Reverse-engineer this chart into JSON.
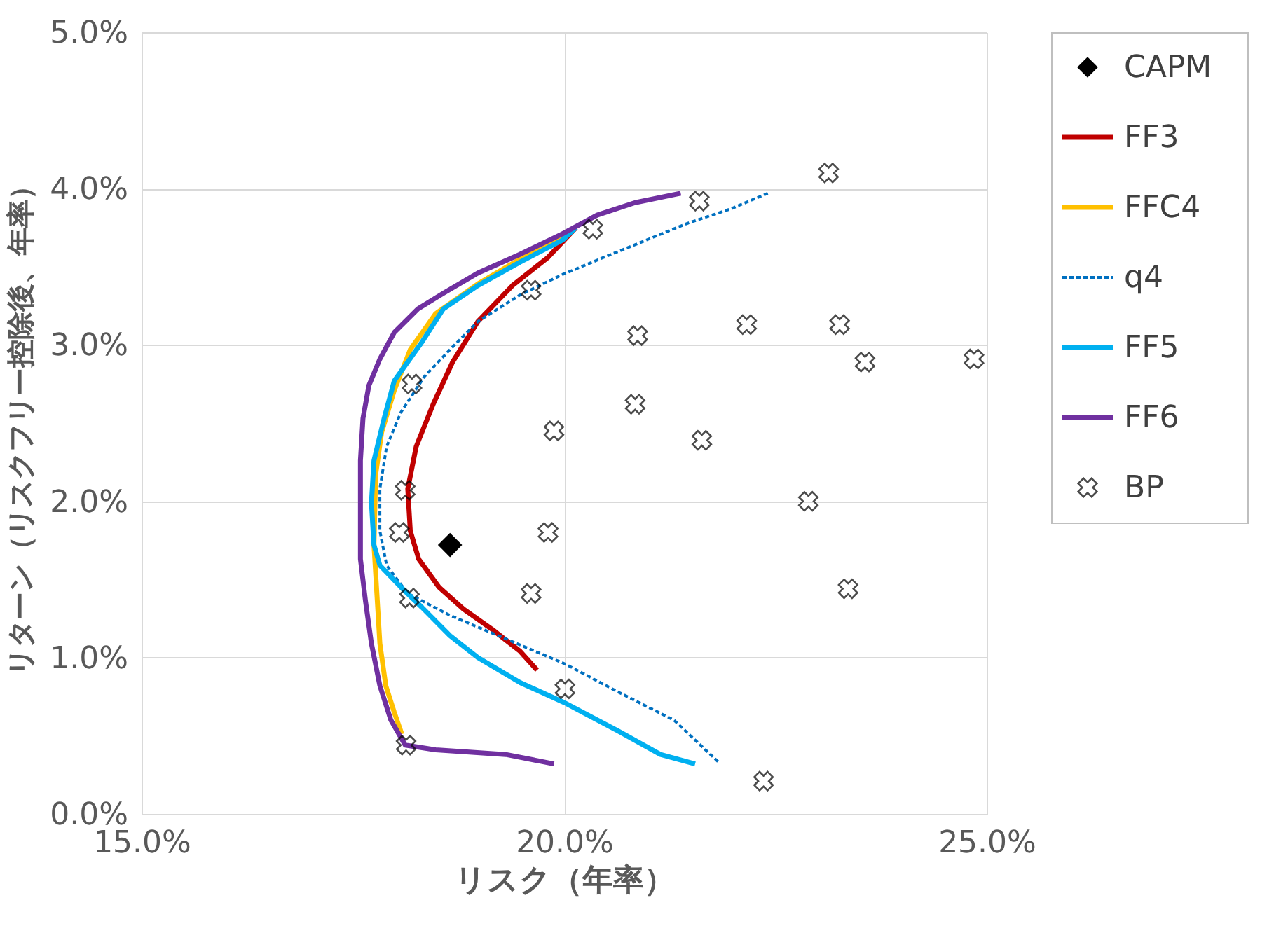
{
  "chart_data": {
    "type": "line",
    "xlabel": "リスク（年率）",
    "ylabel": "リターン（リスクフリー控除後、年率）",
    "xlim": [
      15,
      25
    ],
    "ylim": [
      0,
      5
    ],
    "xticks": [
      {
        "value": 15,
        "label": "15.0%"
      },
      {
        "value": 20,
        "label": "20.0%"
      },
      {
        "value": 25,
        "label": "25.0%"
      }
    ],
    "yticks": [
      {
        "value": 0,
        "label": "0.0%"
      },
      {
        "value": 1,
        "label": "1.0%"
      },
      {
        "value": 2,
        "label": "2.0%"
      },
      {
        "value": 3,
        "label": "3.0%"
      },
      {
        "value": 4,
        "label": "4.0%"
      },
      {
        "value": 5,
        "label": "5.0%"
      }
    ],
    "grid": true,
    "legend": "right",
    "series": [
      {
        "name": "CAPM",
        "type": "scatter",
        "marker": "diamond",
        "color": "#000000",
        "x": [
          18.65
        ],
        "values": [
          1.72
        ]
      },
      {
        "name": "FF3",
        "line_style": "solid",
        "color": "#c00000",
        "x": [
          20.14,
          19.81,
          19.39,
          18.98,
          18.68,
          18.45,
          18.25,
          18.15,
          18.18,
          18.28,
          18.52,
          18.81,
          19.15,
          19.48,
          19.68
        ],
        "values": [
          3.75,
          3.56,
          3.38,
          3.15,
          2.89,
          2.62,
          2.35,
          2.08,
          1.81,
          1.63,
          1.45,
          1.31,
          1.18,
          1.04,
          0.92
        ]
      },
      {
        "name": "FFC4",
        "line_style": "solid",
        "color": "#ffc000",
        "x": [
          20.14,
          19.64,
          18.98,
          18.48,
          18.18,
          17.99,
          17.84,
          17.77,
          17.75,
          17.79,
          17.82,
          17.89,
          17.99,
          18.08
        ],
        "values": [
          3.75,
          3.6,
          3.39,
          3.2,
          2.97,
          2.71,
          2.44,
          2.17,
          1.72,
          1.36,
          1.09,
          0.82,
          0.65,
          0.51
        ]
      },
      {
        "name": "q4",
        "line_style": "dashed",
        "color": "#0070c0",
        "x": [
          22.41,
          21.97,
          21.47,
          20.97,
          20.47,
          19.98,
          19.48,
          18.98,
          18.65,
          18.35,
          18.07,
          17.9,
          17.82,
          17.82,
          17.9,
          18.15,
          18.65,
          19.31,
          20.01,
          20.64,
          21.3,
          21.83
        ],
        "values": [
          3.97,
          3.87,
          3.78,
          3.67,
          3.56,
          3.45,
          3.32,
          3.15,
          2.97,
          2.8,
          2.57,
          2.35,
          2.08,
          1.81,
          1.59,
          1.41,
          1.27,
          1.12,
          0.96,
          0.78,
          0.6,
          0.33
        ]
      },
      {
        "name": "FF5",
        "line_style": "solid",
        "color": "#00b0f0",
        "x": [
          20.14,
          19.98,
          19.48,
          18.98,
          18.57,
          18.32,
          17.99,
          17.87,
          17.75,
          17.72,
          17.75,
          17.82,
          18.07,
          18.32,
          18.65,
          18.98,
          19.48,
          20.01,
          20.64,
          21.14,
          21.55
        ],
        "values": [
          3.75,
          3.67,
          3.53,
          3.38,
          3.23,
          3.02,
          2.77,
          2.53,
          2.26,
          1.99,
          1.72,
          1.59,
          1.45,
          1.32,
          1.14,
          1.0,
          0.84,
          0.71,
          0.53,
          0.38,
          0.32
        ]
      },
      {
        "name": "FF6",
        "line_style": "solid",
        "color": "#7030a0",
        "x": [
          21.38,
          20.84,
          20.39,
          19.98,
          19.48,
          18.98,
          18.57,
          18.27,
          17.99,
          17.82,
          17.69,
          17.62,
          17.59,
          17.59,
          17.65,
          17.72,
          17.82,
          17.95,
          18.12,
          18.48,
          19.31,
          19.88
        ],
        "values": [
          3.97,
          3.91,
          3.83,
          3.71,
          3.58,
          3.46,
          3.33,
          3.23,
          3.08,
          2.91,
          2.74,
          2.53,
          2.26,
          1.63,
          1.36,
          1.09,
          0.82,
          0.6,
          0.44,
          0.41,
          0.38,
          0.32
        ]
      },
      {
        "name": "BP",
        "type": "scatter",
        "marker": "cross",
        "color": "#000000",
        "x": [
          21.6,
          23.13,
          20.34,
          19.61,
          20.87,
          22.16,
          23.26,
          23.56,
          24.85,
          18.2,
          20.84,
          19.88,
          21.63,
          22.89,
          18.12,
          19.81,
          18.05,
          19.61,
          18.17,
          23.36,
          20.01,
          18.13,
          22.36
        ],
        "values": [
          3.92,
          4.1,
          3.74,
          3.35,
          3.06,
          3.13,
          3.13,
          2.89,
          2.91,
          2.75,
          2.62,
          2.45,
          2.39,
          2.0,
          2.07,
          1.8,
          1.8,
          1.41,
          1.38,
          1.44,
          0.8,
          0.44,
          0.21
        ]
      }
    ]
  }
}
